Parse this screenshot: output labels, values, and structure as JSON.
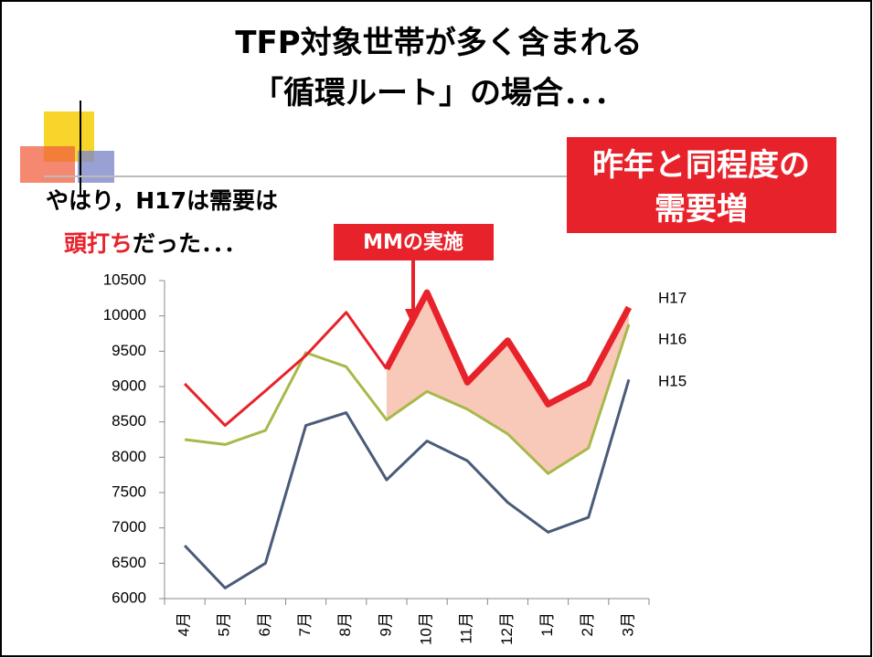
{
  "slide": {
    "title_lines": [
      "TFP対象世帯が多く含まれる",
      "「循環ルート」の場合．．．"
    ],
    "callout_lines": [
      "昨年と同程度の",
      "需要増"
    ],
    "note_line1": "やはり，H17は需要は",
    "note_line2_red": "頭打ち",
    "note_line2_rest": "だった．．．",
    "mm_label": "MMの実施"
  },
  "chart_data": {
    "type": "line",
    "categories": [
      "4月",
      "5月",
      "6月",
      "7月",
      "8月",
      "9月",
      "10月",
      "11月",
      "12月",
      "1月",
      "2月",
      "3月"
    ],
    "series": [
      {
        "name": "H17",
        "color": "#e8222b",
        "values": [
          9040,
          8450,
          8940,
          9440,
          10050,
          9250,
          10330,
          9060,
          9650,
          8750,
          9050,
          10120
        ]
      },
      {
        "name": "H16",
        "color": "#a9b84a",
        "values": [
          8250,
          8180,
          8380,
          9480,
          9280,
          8530,
          8930,
          8680,
          8330,
          7770,
          8130,
          9880
        ]
      },
      {
        "name": "H15",
        "color": "#4a5a78",
        "values": [
          6750,
          6150,
          6500,
          8450,
          8630,
          7680,
          8230,
          7950,
          7360,
          6940,
          7150,
          9100
        ]
      }
    ],
    "ylim": [
      6000,
      10500
    ],
    "yticks": [
      6000,
      6500,
      7000,
      7500,
      8000,
      8500,
      9000,
      9500,
      10000,
      10500
    ]
  }
}
